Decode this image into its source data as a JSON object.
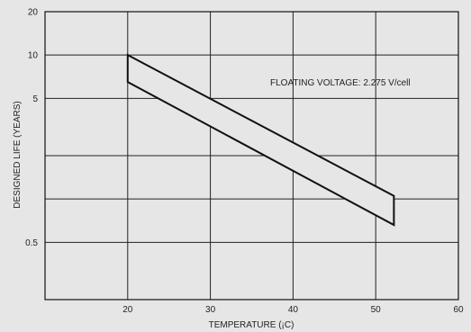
{
  "chart_data": {
    "type": "area",
    "title": "",
    "xlabel": "TEMPERATURE (¡C)",
    "ylabel": "DESIGNED LIFE (YEARS)",
    "xlim": [
      10,
      60
    ],
    "ylim": [
      0.2,
      20
    ],
    "y_scale": "log",
    "grid": true,
    "x_ticks": [
      20,
      30,
      40,
      50,
      60
    ],
    "x_gridlines": [
      20,
      30,
      40,
      50
    ],
    "y_ticks": [
      {
        "value": 20,
        "label": "20"
      },
      {
        "value": 10,
        "label": "10"
      },
      {
        "value": 5,
        "label": "5"
      },
      {
        "value": 0.5,
        "label": "0.5"
      }
    ],
    "y_gridlines": [
      10,
      5,
      2,
      1,
      0.5
    ],
    "annotation": "FLOATING VOLTAGE: 2.275 V/cell",
    "band": {
      "fill": "#e6e6e6",
      "stroke": "#111111",
      "upper": [
        [
          20,
          10
        ],
        [
          52.2,
          1.05
        ]
      ],
      "lower": [
        [
          20,
          6.5
        ],
        [
          52.2,
          0.66
        ]
      ]
    },
    "colors": {
      "background": "#e6e6e6",
      "grid": "#222222",
      "axis": "#111111"
    }
  }
}
